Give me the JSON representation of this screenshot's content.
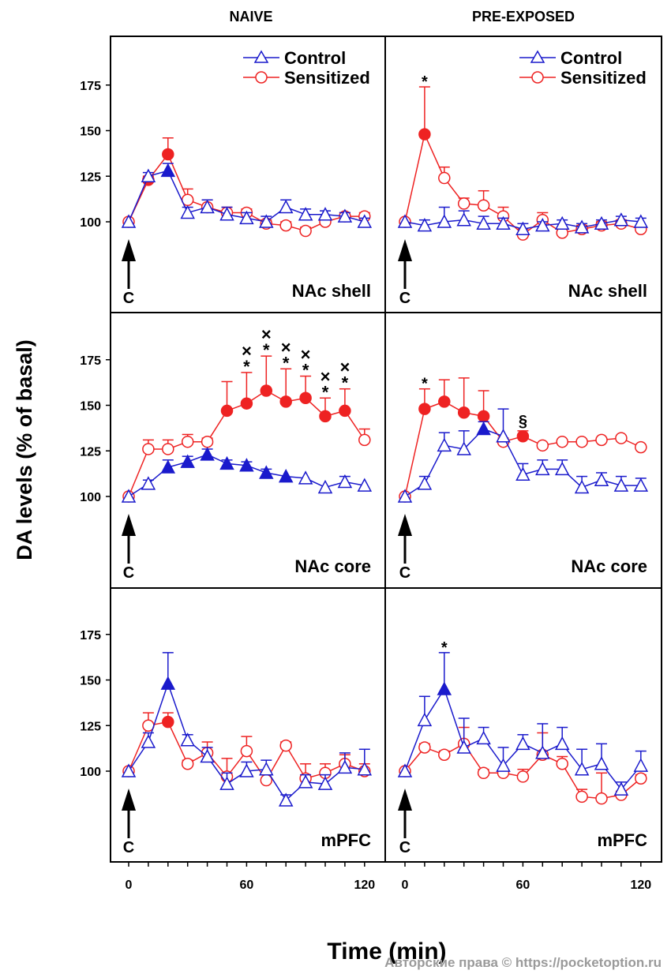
{
  "chart_data": {
    "type": "line",
    "column_titles": [
      "NAIVE",
      "PRE-EXPOSED"
    ],
    "ylabel": "DA levels (% of basal)",
    "xlabel": "Time (min)",
    "x": [
      0,
      10,
      20,
      30,
      40,
      50,
      60,
      70,
      80,
      90,
      100,
      110,
      120
    ],
    "xticks": [
      "0",
      "60",
      "120"
    ],
    "yticks": [
      "100",
      "125",
      "150",
      "175"
    ],
    "ylim": [
      55,
      197
    ],
    "xlim": [
      -5,
      127
    ],
    "grid": false,
    "legend_placement": "top-right",
    "legend": [
      "Control",
      "Sensitized"
    ],
    "injection_marker": "C",
    "colors": {
      "Control": "#1a1acc",
      "Sensitized": "#ee2222"
    },
    "panels": [
      {
        "column": "NAIVE",
        "region": "NAc shell",
        "show_legend": true,
        "series": [
          {
            "name": "Control",
            "marker": "triangle",
            "values": [
              100,
              125,
              128,
              105,
              108,
              104,
              102,
              100,
              108,
              104,
              104,
              103,
              100
            ],
            "error": [
              1,
              2,
              4,
              3,
              4,
              4,
              3,
              3,
              4,
              3,
              2,
              2,
              2
            ],
            "filled": [
              false,
              false,
              true,
              false,
              false,
              false,
              false,
              false,
              false,
              false,
              false,
              false,
              false
            ]
          },
          {
            "name": "Sensitized",
            "marker": "circle",
            "values": [
              100,
              123,
              137,
              112,
              108,
              105,
              105,
              99,
              98,
              95,
              100,
              103,
              103
            ],
            "error": [
              1,
              2,
              9,
              6,
              4,
              3,
              2,
              2,
              2,
              2,
              2,
              2,
              2
            ],
            "filled": [
              false,
              true,
              true,
              false,
              false,
              false,
              false,
              false,
              false,
              false,
              false,
              false,
              false
            ]
          }
        ],
        "annotations": []
      },
      {
        "column": "PRE-EXPOSED",
        "region": "NAc shell",
        "show_legend": true,
        "series": [
          {
            "name": "Control",
            "marker": "triangle",
            "values": [
              100,
              98,
              100,
              101,
              99,
              99,
              96,
              98,
              99,
              97,
              99,
              101,
              100
            ],
            "error": [
              1,
              3,
              8,
              5,
              4,
              3,
              3,
              2,
              2,
              2,
              2,
              2,
              2
            ],
            "filled": [
              false,
              false,
              false,
              false,
              false,
              false,
              false,
              false,
              false,
              false,
              false,
              false,
              false
            ]
          },
          {
            "name": "Sensitized",
            "marker": "circle",
            "values": [
              100,
              148,
              124,
              110,
              109,
              103,
              93,
              101,
              94,
              96,
              98,
              99,
              96
            ],
            "error": [
              1,
              26,
              6,
              3,
              8,
              5,
              3,
              4,
              2,
              2,
              2,
              2,
              2
            ],
            "filled": [
              false,
              true,
              false,
              false,
              false,
              false,
              false,
              false,
              false,
              false,
              false,
              false,
              false
            ]
          }
        ],
        "annotations": [
          {
            "x": 10,
            "text": "*"
          }
        ]
      },
      {
        "column": "NAIVE",
        "region": "NAc core",
        "show_legend": false,
        "series": [
          {
            "name": "Control",
            "marker": "triangle",
            "values": [
              100,
              107,
              116,
              119,
              123,
              118,
              117,
              113,
              111,
              110,
              105,
              108,
              106
            ],
            "error": [
              1,
              2,
              4,
              3,
              3,
              2,
              2,
              2,
              1,
              1,
              1,
              3,
              1
            ],
            "filled": [
              false,
              false,
              true,
              true,
              true,
              true,
              true,
              true,
              true,
              false,
              false,
              false,
              false
            ]
          },
          {
            "name": "Sensitized",
            "marker": "circle",
            "values": [
              100,
              126,
              126,
              130,
              130,
              147,
              151,
              158,
              152,
              154,
              144,
              147,
              131
            ],
            "error": [
              1,
              5,
              5,
              4,
              2,
              16,
              17,
              19,
              18,
              12,
              10,
              12,
              6
            ],
            "filled": [
              false,
              false,
              false,
              false,
              false,
              true,
              true,
              true,
              true,
              true,
              true,
              true,
              false
            ]
          }
        ],
        "annotations": [
          {
            "x": 60,
            "text": "×*"
          },
          {
            "x": 70,
            "text": "×*"
          },
          {
            "x": 80,
            "text": "×*"
          },
          {
            "x": 90,
            "text": "×*"
          },
          {
            "x": 100,
            "text": "×*"
          },
          {
            "x": 110,
            "text": "×*"
          }
        ]
      },
      {
        "column": "PRE-EXPOSED",
        "region": "NAc core",
        "show_legend": false,
        "series": [
          {
            "name": "Control",
            "marker": "triangle",
            "values": [
              100,
              107,
              128,
              126,
              137,
              133,
              112,
              115,
              115,
              105,
              109,
              106,
              106
            ],
            "error": [
              1,
              4,
              7,
              10,
              4,
              15,
              6,
              5,
              5,
              6,
              4,
              5,
              4
            ],
            "filled": [
              false,
              false,
              false,
              false,
              true,
              false,
              false,
              false,
              false,
              false,
              false,
              false,
              false
            ]
          },
          {
            "name": "Sensitized",
            "marker": "circle",
            "values": [
              100,
              148,
              152,
              146,
              144,
              130,
              133,
              128,
              130,
              130,
              131,
              132,
              127
            ],
            "error": [
              1,
              11,
              12,
              19,
              14,
              2,
              3,
              1,
              1,
              1,
              1,
              1,
              1
            ],
            "filled": [
              false,
              true,
              true,
              true,
              true,
              false,
              true,
              false,
              false,
              false,
              false,
              false,
              false
            ]
          }
        ],
        "annotations": [
          {
            "x": 10,
            "text": "*"
          },
          {
            "x": 60,
            "text": "§"
          }
        ]
      },
      {
        "column": "NAIVE",
        "region": "mPFC",
        "show_legend": false,
        "series": [
          {
            "name": "Control",
            "marker": "triangle",
            "values": [
              100,
              116,
              148,
              117,
              108,
              93,
              100,
              101,
              84,
              94,
              93,
              102,
              101
            ],
            "error": [
              1,
              5,
              17,
              3,
              5,
              6,
              5,
              5,
              3,
              4,
              5,
              8,
              11
            ],
            "filled": [
              false,
              false,
              true,
              false,
              false,
              false,
              false,
              false,
              false,
              false,
              false,
              false,
              false
            ]
          },
          {
            "name": "Sensitized",
            "marker": "circle",
            "values": [
              100,
              125,
              127,
              104,
              110,
              97,
              111,
              95,
              114,
              96,
              99,
              104,
              100
            ],
            "error": [
              1,
              7,
              5,
              2,
              6,
              10,
              8,
              3,
              2,
              8,
              5,
              5,
              4
            ],
            "filled": [
              false,
              false,
              true,
              false,
              false,
              false,
              false,
              false,
              false,
              false,
              false,
              false,
              false
            ]
          }
        ],
        "annotations": []
      },
      {
        "column": "PRE-EXPOSED",
        "region": "mPFC",
        "show_legend": false,
        "series": [
          {
            "name": "Control",
            "marker": "triangle",
            "values": [
              100,
              128,
              145,
              113,
              118,
              103,
              115,
              110,
              115,
              101,
              104,
              90,
              103
            ],
            "error": [
              1,
              13,
              20,
              16,
              6,
              10,
              5,
              16,
              9,
              11,
              11,
              4,
              8
            ],
            "filled": [
              false,
              false,
              true,
              false,
              false,
              false,
              false,
              false,
              false,
              false,
              false,
              false,
              false
            ]
          },
          {
            "name": "Sensitized",
            "marker": "circle",
            "values": [
              100,
              113,
              109,
              115,
              99,
              99,
              97,
              109,
              104,
              86,
              85,
              87,
              96
            ],
            "error": [
              1,
              2,
              2,
              9,
              2,
              2,
              4,
              12,
              4,
              4,
              14,
              2,
              2
            ],
            "filled": [
              false,
              false,
              false,
              false,
              false,
              false,
              false,
              false,
              false,
              false,
              false,
              false,
              false
            ]
          }
        ],
        "annotations": [
          {
            "x": 20,
            "text": "*"
          }
        ]
      }
    ]
  },
  "watermark": "Авторские права © https://pocketoption.ru"
}
